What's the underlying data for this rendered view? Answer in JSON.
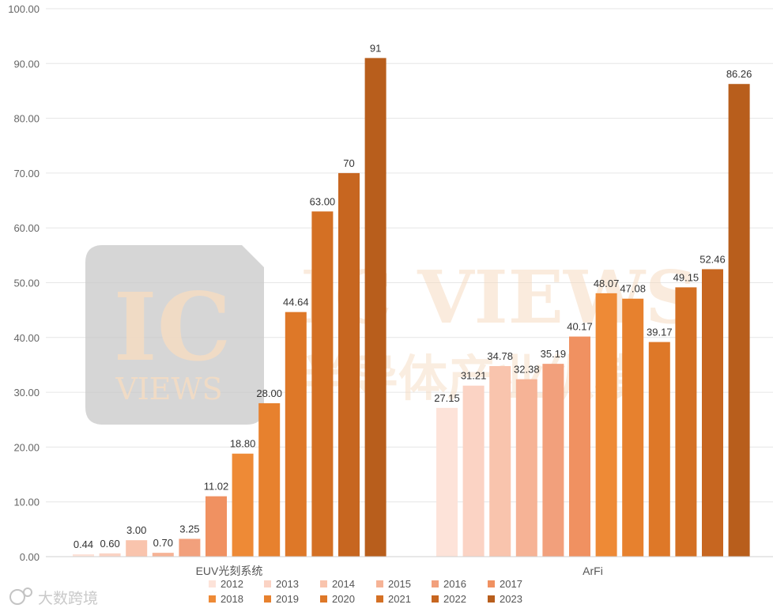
{
  "chart_data": {
    "type": "bar",
    "y_ticks": [
      "0.00",
      "10.00",
      "20.00",
      "30.00",
      "40.00",
      "50.00",
      "60.00",
      "70.00",
      "80.00",
      "90.00",
      "100.00"
    ],
    "ylim": [
      0,
      100
    ],
    "grid": true,
    "legend_position": "bottom",
    "categories": [
      "EUV光刻系统",
      "ArFi"
    ],
    "series": [
      {
        "name": "2012",
        "color": "#fde3d9",
        "values": [
          0.44,
          27.15
        ],
        "labels": [
          "0.44",
          "27.15"
        ]
      },
      {
        "name": "2013",
        "color": "#fbd3c4",
        "values": [
          0.6,
          31.21
        ],
        "labels": [
          "0.60",
          "31.21"
        ]
      },
      {
        "name": "2014",
        "color": "#f9c4ad",
        "values": [
          3.0,
          34.78
        ],
        "labels": [
          "3.00",
          "34.78"
        ]
      },
      {
        "name": "2015",
        "color": "#f6b396",
        "values": [
          0.7,
          32.38
        ],
        "labels": [
          "0.70",
          "32.38"
        ]
      },
      {
        "name": "2016",
        "color": "#f2a07c",
        "values": [
          3.25,
          35.19
        ],
        "labels": [
          "3.25",
          "35.19"
        ]
      },
      {
        "name": "2017",
        "color": "#f09161",
        "values": [
          11.02,
          40.17
        ],
        "labels": [
          "11.02",
          "40.17"
        ]
      },
      {
        "name": "2018",
        "color": "#ee8a36",
        "values": [
          18.8,
          48.07
        ],
        "labels": [
          "18.80",
          "48.07"
        ]
      },
      {
        "name": "2019",
        "color": "#e7812e",
        "values": [
          28.0,
          47.08
        ],
        "labels": [
          "28.00",
          "47.08"
        ]
      },
      {
        "name": "2020",
        "color": "#de7828",
        "values": [
          44.64,
          39.17
        ],
        "labels": [
          "44.64",
          "39.17"
        ]
      },
      {
        "name": "2021",
        "color": "#d47024",
        "values": [
          63.0,
          49.15
        ],
        "labels": [
          "63.00",
          "49.15"
        ]
      },
      {
        "name": "2022",
        "color": "#c76620",
        "values": [
          70,
          52.46
        ],
        "labels": [
          "70",
          "52.46"
        ]
      },
      {
        "name": "2023",
        "color": "#b85e1c",
        "values": [
          91,
          86.26
        ],
        "labels": [
          "91",
          "86.26"
        ]
      }
    ]
  },
  "watermark": {
    "logo_text": "IC",
    "logo_sub": "VIEWS",
    "brand": "IC VIEWS",
    "brand_cn": "半导体产业纵横"
  },
  "source_mark": "大数跨境"
}
